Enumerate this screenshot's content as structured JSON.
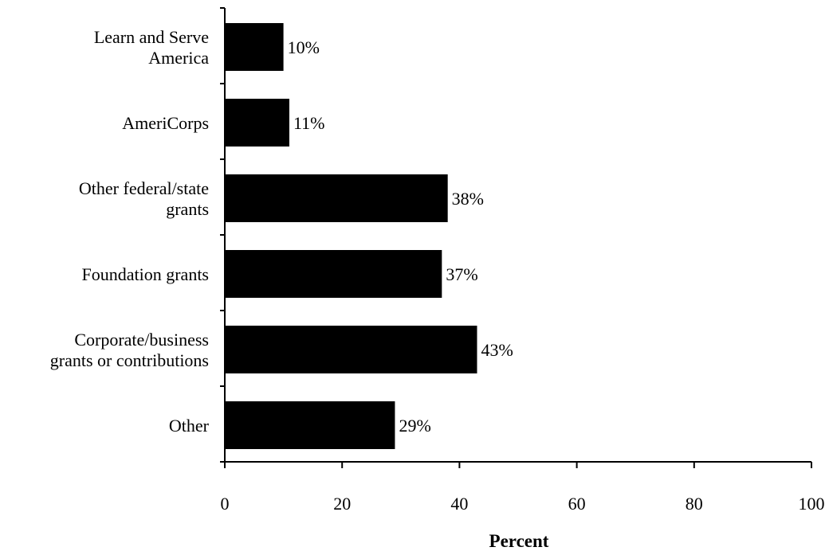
{
  "chart_data": {
    "type": "bar",
    "orientation": "horizontal",
    "categories": [
      [
        "Learn and Serve",
        "America"
      ],
      [
        "AmeriCorps"
      ],
      [
        "Other federal/state",
        "grants"
      ],
      [
        "Foundation grants"
      ],
      [
        "Corporate/business",
        "grants or contributions"
      ],
      [
        "Other"
      ]
    ],
    "values": [
      10,
      11,
      38,
      37,
      43,
      29
    ],
    "data_labels": [
      "10%",
      "11%",
      "38%",
      "37%",
      "43%",
      "29%"
    ],
    "xlabel": "Percent",
    "ylabel": "",
    "xlim": [
      0,
      100
    ],
    "xticks": [
      0,
      20,
      40,
      60,
      80,
      100
    ],
    "xtick_labels": [
      "0",
      "20",
      "40",
      "60",
      "80",
      "100"
    ],
    "bar_color": "#000000",
    "grid": false,
    "legend": "none"
  }
}
